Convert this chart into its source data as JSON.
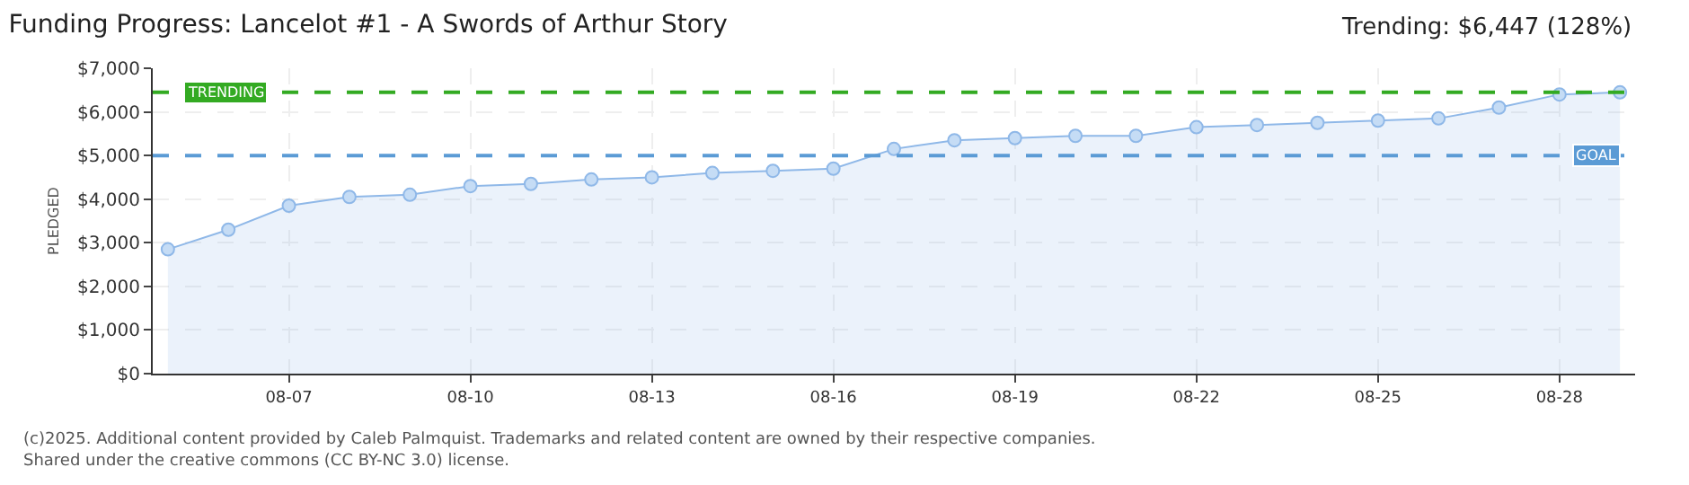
{
  "chart_data": {
    "type": "area",
    "title": "Funding Progress: Lancelot #1 - A Swords of Arthur Story",
    "subtitle": "Trending: $6,447 (128%)",
    "ylabel": "PLEDGED",
    "x": [
      "2025-08-05",
      "2025-08-06",
      "2025-08-07",
      "2025-08-08",
      "2025-08-09",
      "2025-08-10",
      "2025-08-11",
      "2025-08-12",
      "2025-08-13",
      "2025-08-14",
      "2025-08-15",
      "2025-08-16",
      "2025-08-17",
      "2025-08-18",
      "2025-08-19",
      "2025-08-20",
      "2025-08-21",
      "2025-08-22",
      "2025-08-23",
      "2025-08-24",
      "2025-08-25",
      "2025-08-26",
      "2025-08-27",
      "2025-08-28",
      "2025-08-29"
    ],
    "series": [
      {
        "color": "#8fb8e8",
        "values": [
          2850,
          3300,
          3850,
          4050,
          4100,
          4300,
          4350,
          4450,
          4500,
          4600,
          4650,
          4700,
          5150,
          5350,
          5400,
          5450,
          5450,
          5650,
          5700,
          5750,
          5800,
          5850,
          6100,
          6400,
          6447
        ]
      }
    ],
    "xlim": [
      "2025-08-04T18:00",
      "2025-08-29T06:00"
    ],
    "xticks": [
      {
        "value": "2025-08-07",
        "label": "08-07"
      },
      {
        "value": "2025-08-10",
        "label": "08-10"
      },
      {
        "value": "2025-08-13",
        "label": "08-13"
      },
      {
        "value": "2025-08-16",
        "label": "08-16"
      },
      {
        "value": "2025-08-19",
        "label": "08-19"
      },
      {
        "value": "2025-08-22",
        "label": "08-22"
      },
      {
        "value": "2025-08-25",
        "label": "08-25"
      },
      {
        "value": "2025-08-28",
        "label": "08-28"
      }
    ],
    "ylim": [
      0,
      7000
    ],
    "yticks": [
      {
        "value": 0,
        "label": "$0"
      },
      {
        "value": 1000,
        "label": "$1,000"
      },
      {
        "value": 2000,
        "label": "$2,000"
      },
      {
        "value": 3000,
        "label": "$3,000"
      },
      {
        "value": 4000,
        "label": "$4,000"
      },
      {
        "value": 5000,
        "label": "$5,000"
      },
      {
        "value": 6000,
        "label": "$6,000"
      },
      {
        "value": 7000,
        "label": "$7,000"
      }
    ],
    "ref_lines": [
      {
        "axis": "y",
        "value": 6447,
        "label": "TRENDING",
        "color": "#33aa22",
        "line_style": "dashed"
      },
      {
        "axis": "y",
        "value": 5000,
        "label": "GOAL",
        "color": "#5b9bd5",
        "line_style": "dashed"
      }
    ],
    "annotations": [
      "(c)2025. Additional content provided by Caleb Palmquist. Trademarks and related content are owned by their respective companies.",
      "Shared under the creative commons (CC BY-NC 3.0) license."
    ],
    "grid": true,
    "marker": "circle",
    "line_style": "solid"
  }
}
